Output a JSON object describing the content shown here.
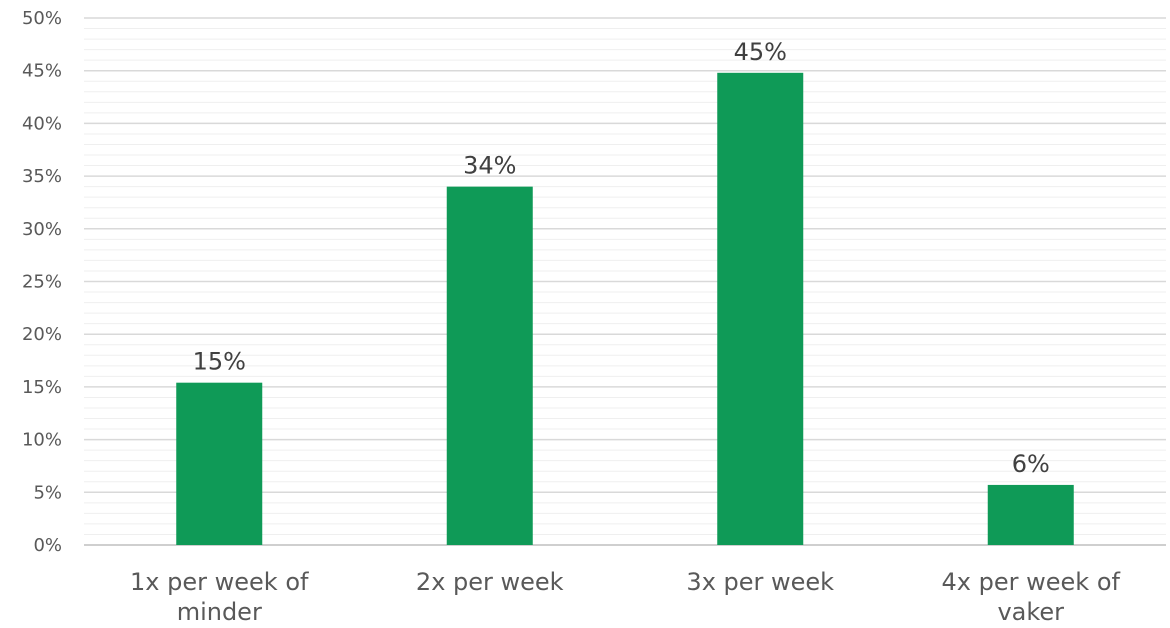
{
  "chart_data": {
    "type": "bar",
    "title": "",
    "xlabel": "",
    "ylabel": "",
    "categories": [
      [
        "1x per week of",
        "minder"
      ],
      [
        "2x per week"
      ],
      [
        "3x per week"
      ],
      [
        "4x per week of",
        "vaker"
      ]
    ],
    "values": [
      15.4,
      34.0,
      44.8,
      5.7
    ],
    "data_labels": [
      "15%",
      "34%",
      "45%",
      "6%"
    ],
    "ylim": [
      0,
      50
    ],
    "y_ticks": [
      0,
      5,
      10,
      15,
      20,
      25,
      30,
      35,
      40,
      45,
      50
    ],
    "y_tick_labels": [
      "0%",
      "5%",
      "10%",
      "15%",
      "20%",
      "25%",
      "30%",
      "35%",
      "40%",
      "45%",
      "50%"
    ],
    "y_minor_step": 1,
    "grid": true,
    "legend": "none",
    "colors": {
      "bar": "#0f9a57",
      "major_grid": "#d9d9d9",
      "minor_grid": "#efefef",
      "axis": "#bfbfbf"
    }
  }
}
